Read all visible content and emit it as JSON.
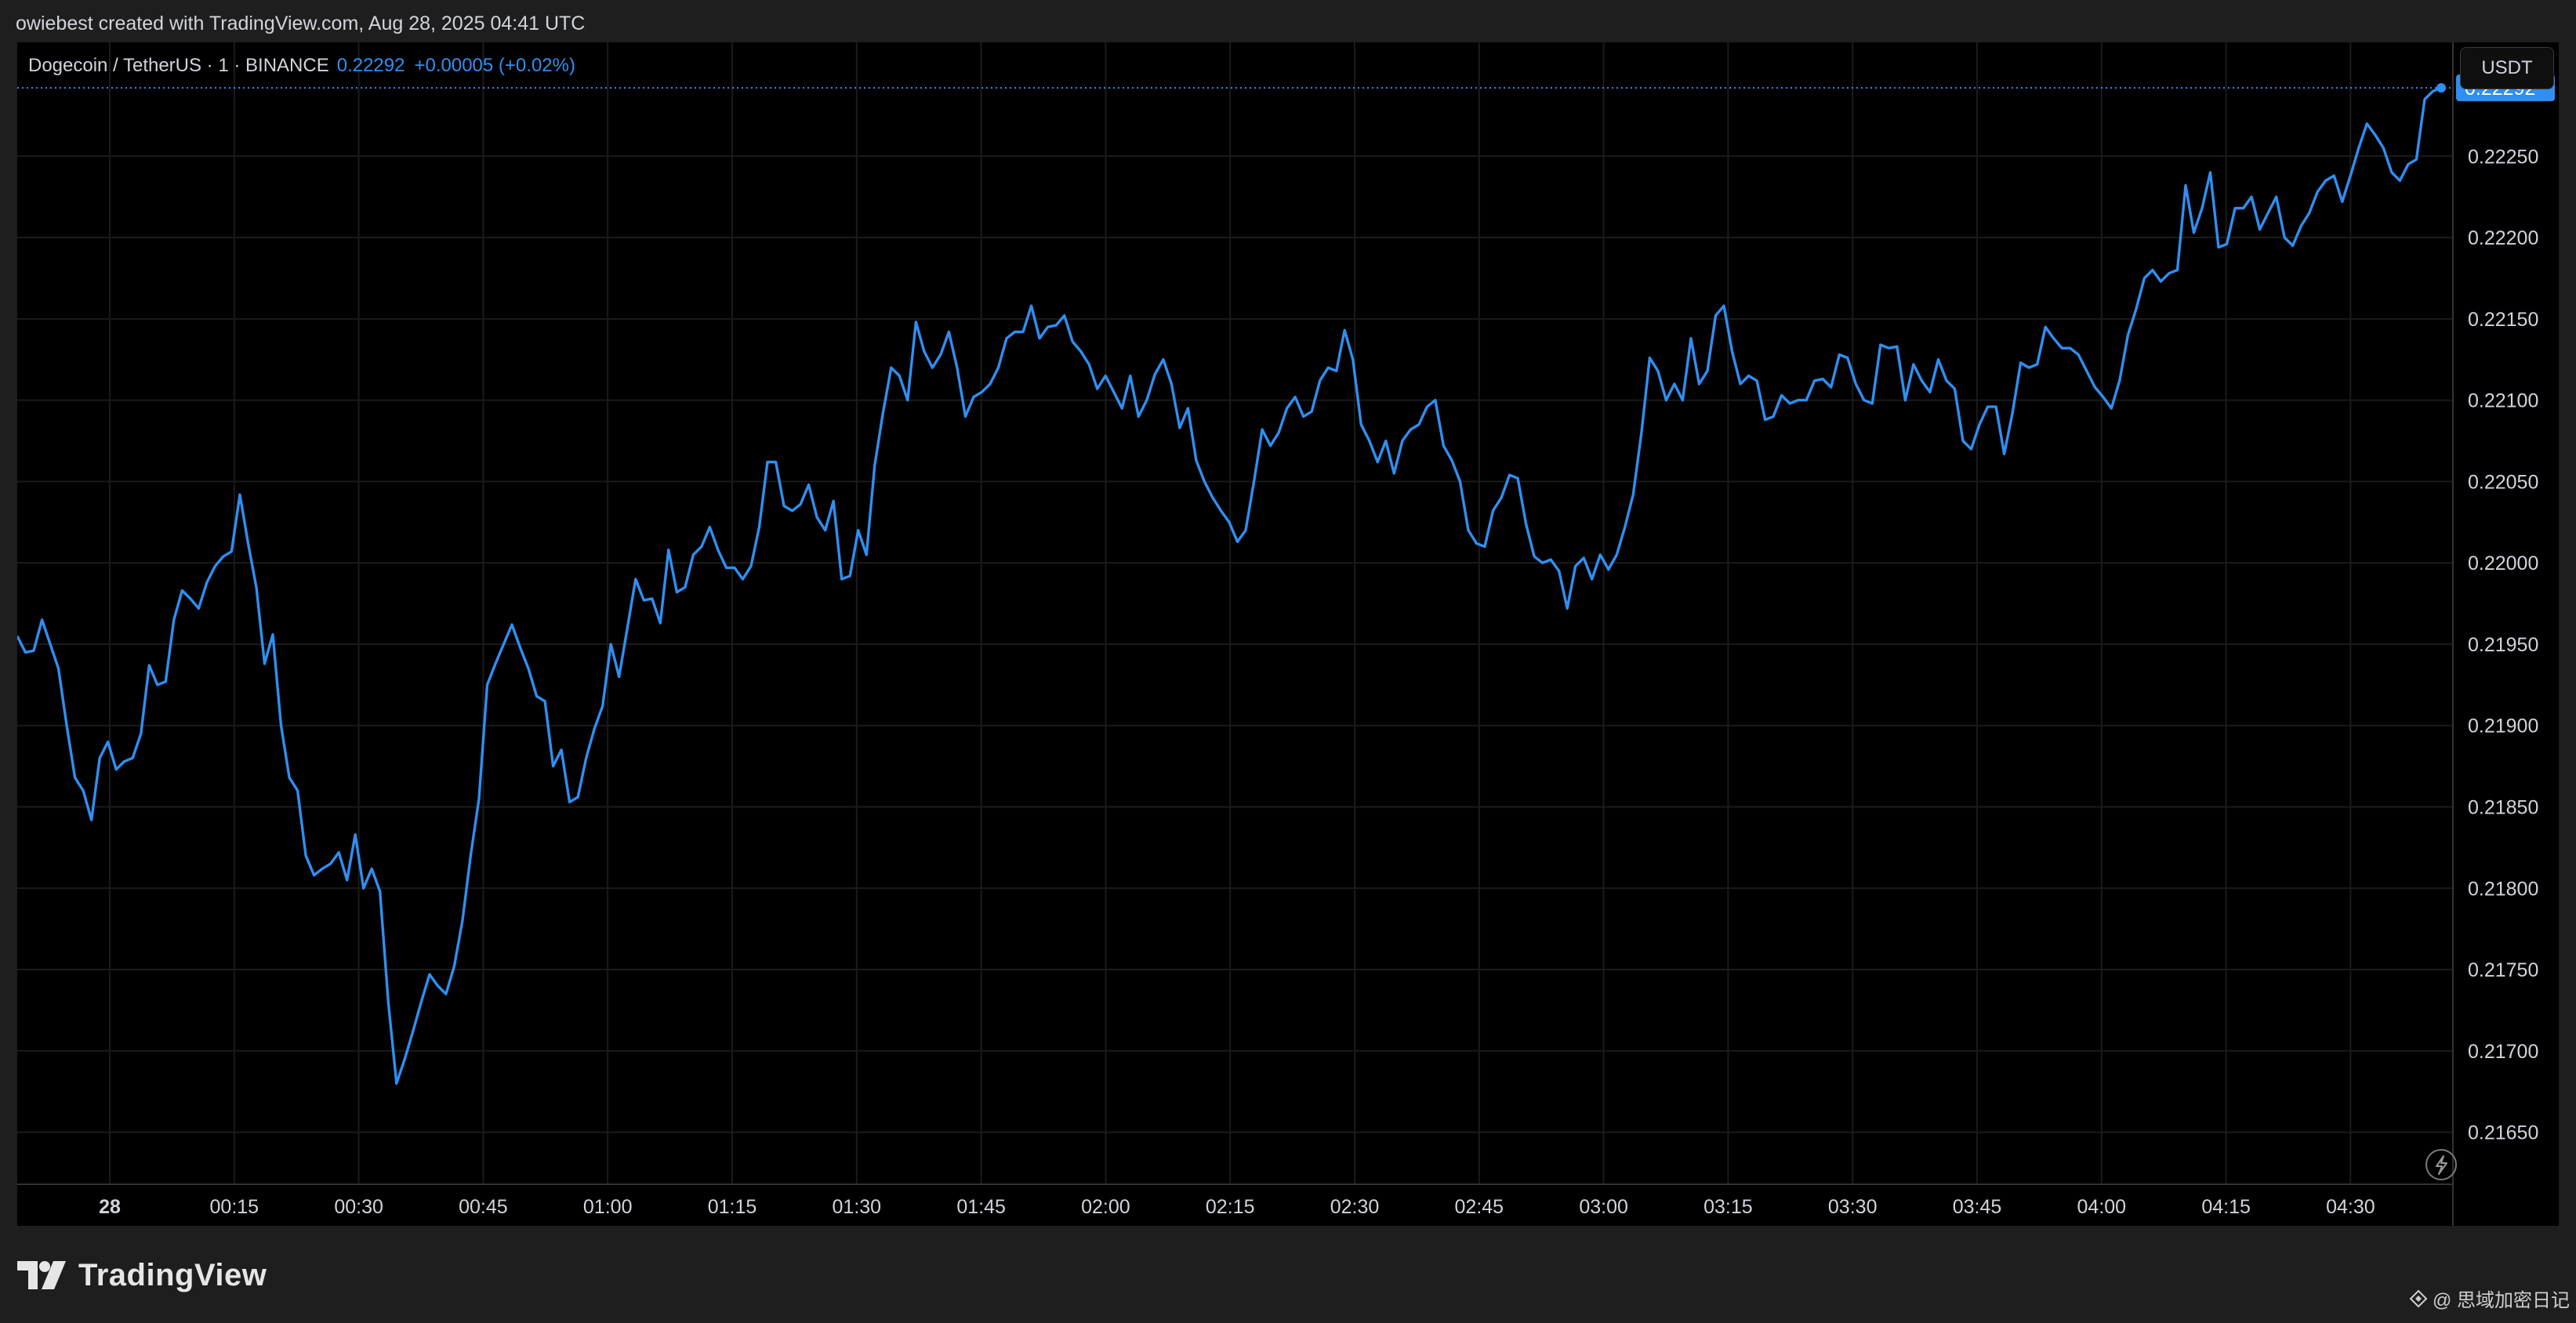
{
  "header": {
    "credit": "owiebest created with TradingView.com, Aug 28, 2025 04:41 UTC"
  },
  "legend": {
    "symbol": "Dogecoin / TetherUS · 1 · BINANCE",
    "price": "0.22292",
    "change": "+0.00005 (+0.02%)"
  },
  "currency_button": "USDT",
  "brand": {
    "name": "TradingView",
    "logo_icon": "tradingview-logo-icon"
  },
  "watermark": {
    "text": "@ 思域加密日记",
    "icon": "binance-square-icon"
  },
  "colors": {
    "line": "#2f8ff2",
    "background": "#000000",
    "grid": "#1b1b1b",
    "axis_text": "#d1d4dc"
  },
  "chart_data": {
    "type": "line",
    "title": "",
    "xlabel": "",
    "ylabel": "",
    "ylim": [
      0.21618,
      0.2232
    ],
    "x_ticks": [
      "28",
      "00:15",
      "00:30",
      "00:45",
      "01:00",
      "01:15",
      "01:30",
      "01:45",
      "02:00",
      "02:15",
      "02:30",
      "02:45",
      "03:00",
      "03:15",
      "03:30",
      "03:45",
      "04:00",
      "04:15",
      "04:30"
    ],
    "y_ticks": [
      "0.21650",
      "0.21700",
      "0.21750",
      "0.21800",
      "0.21850",
      "0.21900",
      "0.21950",
      "0.22000",
      "0.22050",
      "0.22100",
      "0.22150",
      "0.22200",
      "0.22250"
    ],
    "last_price_label": "0.22292",
    "grid": true,
    "series": [
      {
        "values": [
          0.21955,
          0.21945,
          0.21946,
          0.21965,
          0.2195,
          0.21935,
          0.219,
          0.21868,
          0.2186,
          0.21842,
          0.2188,
          0.2189,
          0.21873,
          0.21878,
          0.2188,
          0.21895,
          0.21937,
          0.21925,
          0.21927,
          0.21965,
          0.21983,
          0.21978,
          0.21972,
          0.21988,
          0.21998,
          0.22004,
          0.22007,
          0.22042,
          0.22012,
          0.21985,
          0.21938,
          0.21956,
          0.219,
          0.21868,
          0.2186,
          0.2182,
          0.21808,
          0.21812,
          0.21815,
          0.21822,
          0.21805,
          0.21833,
          0.218,
          0.21812,
          0.21798,
          0.2173,
          0.2168,
          0.21695,
          0.21712,
          0.2173,
          0.21747,
          0.2174,
          0.21735,
          0.21752,
          0.2178,
          0.2182,
          0.21855,
          0.21925,
          0.21938,
          0.2195,
          0.21962,
          0.21948,
          0.21935,
          0.21918,
          0.21915,
          0.21875,
          0.21885,
          0.21853,
          0.21856,
          0.2188,
          0.21898,
          0.21912,
          0.2195,
          0.2193,
          0.2196,
          0.2199,
          0.21977,
          0.21978,
          0.21963,
          0.22008,
          0.21982,
          0.21985,
          0.22005,
          0.2201,
          0.22022,
          0.22008,
          0.21997,
          0.21997,
          0.2199,
          0.21998,
          0.22022,
          0.22062,
          0.22062,
          0.22035,
          0.22032,
          0.22036,
          0.22048,
          0.22028,
          0.2202,
          0.22038,
          0.2199,
          0.21992,
          0.2202,
          0.22005,
          0.2206,
          0.22092,
          0.2212,
          0.22115,
          0.221,
          0.22148,
          0.2213,
          0.2212,
          0.22128,
          0.22142,
          0.2212,
          0.2209,
          0.22102,
          0.22105,
          0.2211,
          0.2212,
          0.22138,
          0.22142,
          0.22142,
          0.22158,
          0.22138,
          0.22145,
          0.22146,
          0.22152,
          0.22136,
          0.2213,
          0.22122,
          0.22107,
          0.22115,
          0.22105,
          0.22095,
          0.22115,
          0.2209,
          0.221,
          0.22116,
          0.22125,
          0.2211,
          0.22083,
          0.22095,
          0.22063,
          0.2205,
          0.2204,
          0.22032,
          0.22025,
          0.22013,
          0.2202,
          0.2205,
          0.22082,
          0.22072,
          0.2208,
          0.22095,
          0.22102,
          0.2209,
          0.22093,
          0.22112,
          0.2212,
          0.22118,
          0.22143,
          0.22125,
          0.22085,
          0.22075,
          0.22062,
          0.22075,
          0.22055,
          0.22075,
          0.22082,
          0.22085,
          0.22096,
          0.221,
          0.22072,
          0.22063,
          0.2205,
          0.2202,
          0.22012,
          0.2201,
          0.22032,
          0.2204,
          0.22054,
          0.22052,
          0.22024,
          0.22004,
          0.22,
          0.22002,
          0.21995,
          0.21972,
          0.21998,
          0.22003,
          0.2199,
          0.22005,
          0.21996,
          0.22005,
          0.22022,
          0.22042,
          0.2208,
          0.22126,
          0.22118,
          0.221,
          0.2211,
          0.221,
          0.22138,
          0.2211,
          0.22118,
          0.22152,
          0.22158,
          0.2213,
          0.2211,
          0.22115,
          0.22112,
          0.22088,
          0.2209,
          0.22103,
          0.22098,
          0.221,
          0.221,
          0.22112,
          0.22113,
          0.22108,
          0.22128,
          0.22126,
          0.2211,
          0.221,
          0.22098,
          0.22134,
          0.22132,
          0.22133,
          0.221,
          0.22122,
          0.22112,
          0.22105,
          0.22125,
          0.22112,
          0.22107,
          0.22075,
          0.2207,
          0.22085,
          0.22096,
          0.22096,
          0.22067,
          0.22092,
          0.22123,
          0.2212,
          0.22122,
          0.22145,
          0.22138,
          0.22132,
          0.22132,
          0.22128,
          0.22118,
          0.22108,
          0.22102,
          0.22095,
          0.22112,
          0.2214,
          0.22156,
          0.22175,
          0.2218,
          0.22173,
          0.22178,
          0.2218,
          0.22232,
          0.22203,
          0.22218,
          0.2224,
          0.22194,
          0.22196,
          0.22218,
          0.22218,
          0.22225,
          0.22205,
          0.22215,
          0.22225,
          0.222,
          0.22195,
          0.22207,
          0.22215,
          0.22228,
          0.22235,
          0.22238,
          0.22222,
          0.22238,
          0.22255,
          0.2227,
          0.22263,
          0.22255,
          0.2224,
          0.22235,
          0.22245,
          0.22248,
          0.22285,
          0.2229,
          0.22292
        ]
      }
    ]
  }
}
